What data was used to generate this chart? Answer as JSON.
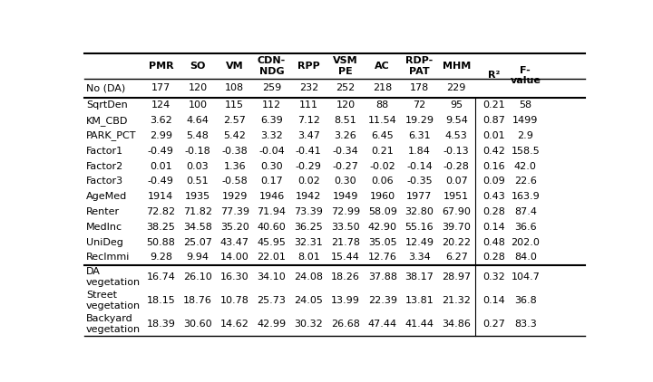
{
  "columns": [
    "PMR",
    "SO",
    "VM",
    "CDN-\nNDG",
    "RPP",
    "VSM\nPE",
    "AC",
    "RDP-\nPAT",
    "MHM"
  ],
  "r2_header": "R²",
  "fval_header": "F-\nvalue",
  "rows": [
    [
      "No (DA)",
      "177",
      "120",
      "108",
      "259",
      "232",
      "252",
      "218",
      "178",
      "229",
      "",
      ""
    ],
    [
      "SqrtDen",
      "124",
      "100",
      "115",
      "112",
      "111",
      "120",
      "88",
      "72",
      "95",
      "0.21",
      "58"
    ],
    [
      "KM_CBD",
      "3.62",
      "4.64",
      "2.57",
      "6.39",
      "7.12",
      "8.51",
      "11.54",
      "19.29",
      "9.54",
      "0.87",
      "1499"
    ],
    [
      "PARK_PCT",
      "2.99",
      "5.48",
      "5.42",
      "3.32",
      "3.47",
      "3.26",
      "6.45",
      "6.31",
      "4.53",
      "0.01",
      "2.9"
    ],
    [
      "Factor1",
      "-0.49",
      "-0.18",
      "-0.38",
      "-0.04",
      "-0.41",
      "-0.34",
      "0.21",
      "1.84",
      "-0.13",
      "0.42",
      "158.5"
    ],
    [
      "Factor2",
      "0.01",
      "0.03",
      "1.36",
      "0.30",
      "-0.29",
      "-0.27",
      "-0.02",
      "-0.14",
      "-0.28",
      "0.16",
      "42.0"
    ],
    [
      "Factor3",
      "-0.49",
      "0.51",
      "-0.58",
      "0.17",
      "0.02",
      "0.30",
      "0.06",
      "-0.35",
      "0.07",
      "0.09",
      "22.6"
    ],
    [
      "AgeMed",
      "1914",
      "1935",
      "1929",
      "1946",
      "1942",
      "1949",
      "1960",
      "1977",
      "1951",
      "0.43",
      "163.9"
    ],
    [
      "Renter",
      "72.82",
      "71.82",
      "77.39",
      "71.94",
      "73.39",
      "72.99",
      "58.09",
      "32.80",
      "67.90",
      "0.28",
      "87.4"
    ],
    [
      "MedInc",
      "38.25",
      "34.58",
      "35.20",
      "40.60",
      "36.25",
      "33.50",
      "42.90",
      "55.16",
      "39.70",
      "0.14",
      "36.6"
    ],
    [
      "UniDeg",
      "50.88",
      "25.07",
      "43.47",
      "45.95",
      "32.31",
      "21.78",
      "35.05",
      "12.49",
      "20.22",
      "0.48",
      "202.0"
    ],
    [
      "RecImmi",
      "9.28",
      "9.94",
      "14.00",
      "22.01",
      "8.01",
      "15.44",
      "12.76",
      "3.34",
      "6.27",
      "0.28",
      "84.0"
    ],
    [
      "DA\nvegetation",
      "16.74",
      "26.10",
      "16.30",
      "34.10",
      "24.08",
      "18.26",
      "37.88",
      "38.17",
      "28.97",
      "0.32",
      "104.7"
    ],
    [
      "Street\nvegetation",
      "18.15",
      "18.76",
      "10.78",
      "25.73",
      "24.05",
      "13.99",
      "22.39",
      "13.81",
      "21.32",
      "0.14",
      "36.8"
    ],
    [
      "Backyard\nvegetation",
      "18.39",
      "30.60",
      "14.62",
      "42.99",
      "30.32",
      "26.68",
      "47.44",
      "41.44",
      "34.86",
      "0.27",
      "83.3"
    ]
  ],
  "font_size": 8.0,
  "bg_color": "#ffffff"
}
